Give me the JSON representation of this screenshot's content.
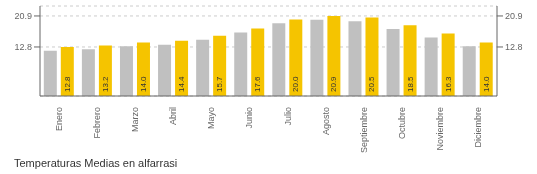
{
  "chart_data": {
    "type": "bar",
    "title": "Temperaturas Medias en alfarrasi",
    "categories": [
      "Enero",
      "Febrero",
      "Marzo",
      "Abril",
      "Mayo",
      "Junio",
      "Julio",
      "Agosto",
      "Septiembre",
      "Octubre",
      "Noviembre",
      "Diciembre"
    ],
    "series": [
      {
        "color": "#C0C0C0",
        "values": [
          11.8,
          12.2,
          13.0,
          13.4,
          14.7,
          16.6,
          19.0,
          19.9,
          19.5,
          17.5,
          15.3,
          13.0
        ]
      },
      {
        "color": "#F5C400",
        "values": [
          12.8,
          13.2,
          14.0,
          14.4,
          15.7,
          17.6,
          20.0,
          20.9,
          20.5,
          18.5,
          16.3,
          14.0
        ],
        "data_labels": true,
        "value_labels": [
          "12.8",
          "13.2",
          "14.0",
          "14.4",
          "15.7",
          "17.6",
          "20.0",
          "20.9",
          "20.5",
          "18.5",
          "16.3",
          "14.0"
        ]
      }
    ],
    "ylim": [
      0,
      23.5
    ],
    "yticks": [
      12.8,
      20.9
    ],
    "grid": true
  }
}
